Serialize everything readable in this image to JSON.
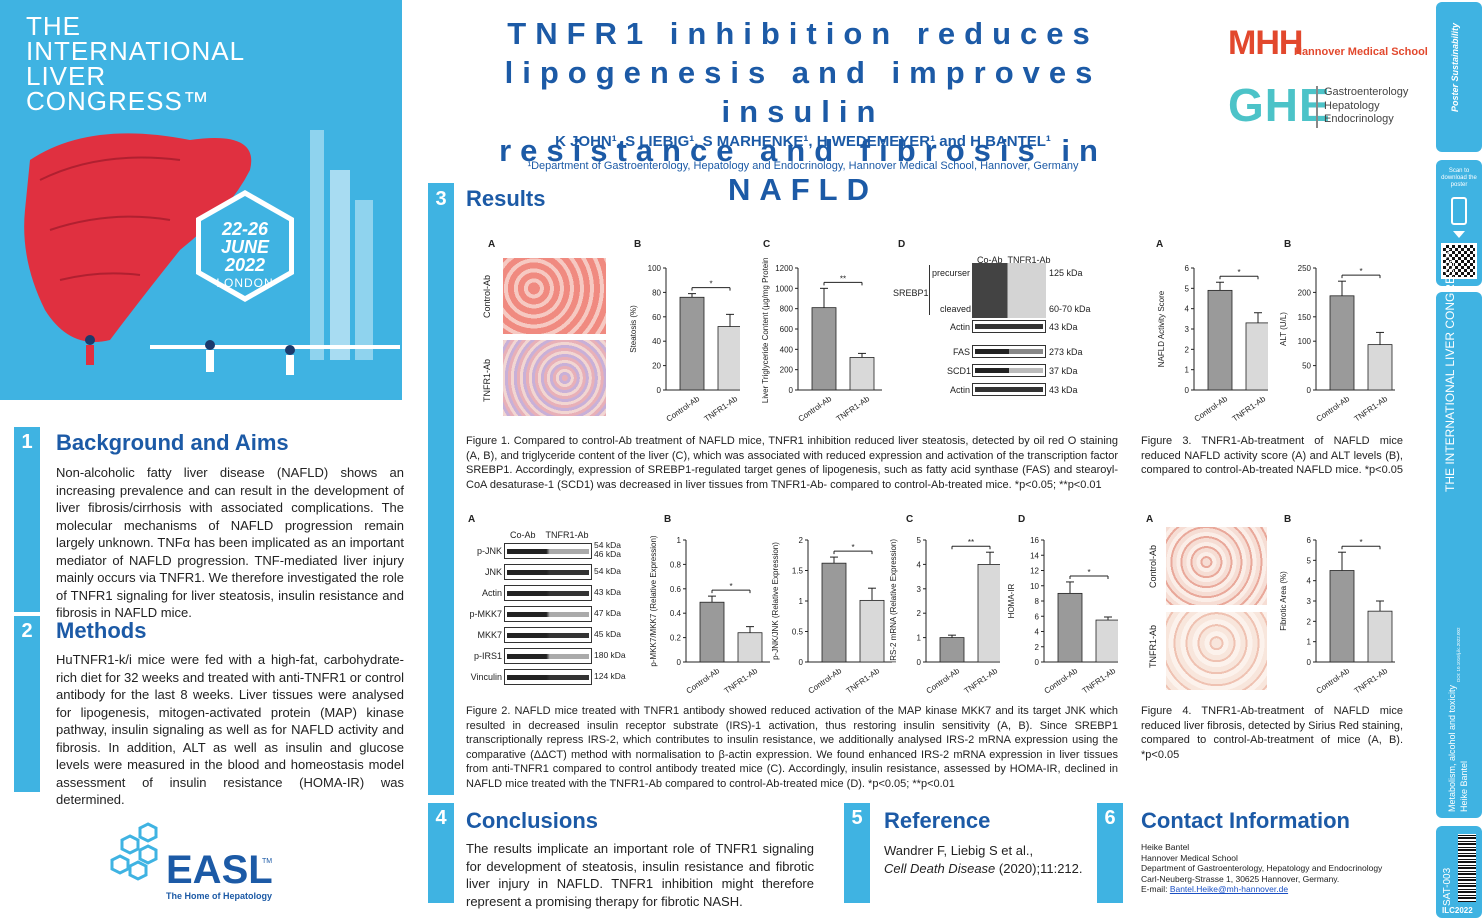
{
  "congress": {
    "line1": "THE",
    "line2": "INTERNATIONAL",
    "line3": "LIVER",
    "line4": "CONGRESS™",
    "dates1": "22-26",
    "dates2": "JUNE",
    "dates3": "2022",
    "city": "LONDON"
  },
  "title": {
    "line1": "TNFR1 inhibition reduces",
    "line2": "lipogenesis and improves insulin",
    "line3": "resistance and fibrosis in NAFLD",
    "authors": "K JOHN¹, S LIEBIG¹, S MARHENKE¹, H WEDEMEYER¹ and H BANTEL¹",
    "affiliation": "¹Department of Gastroenterology, Hepatology and Endocrinology, Hannover Medical School, Hannover, Germany"
  },
  "logos": {
    "mhh": "MHH",
    "mhh_name": "Hannover Medical School",
    "ghe": "GHE",
    "ghe_l1": "Gastroenterology",
    "ghe_l2": "Hepatology",
    "ghe_l3": "Endocrinology",
    "easl": "EASL",
    "easl_tm": "TM",
    "easl_sub": "The Home of Hepatology"
  },
  "sections": {
    "s1": {
      "num": "1",
      "title": "Background and Aims",
      "body": "Non-alcoholic fatty liver disease (NAFLD) shows an increasing prevalence and can result in the development of liver fibrosis/cirrhosis with associated complications. The molecular mechanisms of NAFLD progression remain largely unknown. TNFα has been implicated as an important mediator of NAFLD progression. TNF-mediated liver injury mainly occurs via TNFR1. We therefore investigated the role of TNFR1 signaling for liver steatosis, insulin resistance and fibrosis in NAFLD mice."
    },
    "s2": {
      "num": "2",
      "title": "Methods",
      "body": "HuTNFR1-k/i mice were fed with a high-fat, carbohydrate-rich diet for 32 weeks and treated with anti-TNFR1 or control antibody for the last 8 weeks. Liver tissues were analysed for lipogenesis, mitogen-activated protein (MAP) kinase pathway, insulin signaling as well as for NAFLD activity and fibrosis. In addition, ALT as well as insulin and glucose levels were measured in the blood and homeostasis model assessment of insulin resistance (HOMA-IR) was determined."
    },
    "s3": {
      "num": "3",
      "title": "Results"
    },
    "s4": {
      "num": "4",
      "title": "Conclusions",
      "body": "The results implicate an important role of TNFR1 signaling for development of steatosis, insulin resistance and fibrotic liver injury in NAFLD. TNFR1 inhibition might therefore represent a promising therapy for fibrotic NASH."
    },
    "s5": {
      "num": "5",
      "title": "Reference",
      "l1": "Wandrer F, Liebig S et al.,",
      "l2a": "Cell Death Disease",
      "l2b": " (2020);11:212."
    },
    "s6": {
      "num": "6",
      "title": "Contact Information",
      "l1": "Heike Bantel",
      "l2": "Hannover Medical School",
      "l3": "Department of Gastroenterology, Hepatology and Endocrinology",
      "l4": "Carl-Neuberg-Strasse 1, 30625 Hannover, Germany.",
      "l5a": "E-mail: ",
      "l5b": "Bantel.Heike@mh-hannover.de"
    }
  },
  "captions": {
    "fig1": "Figure 1. Compared to control-Ab treatment of NAFLD mice, TNFR1 inhibition reduced liver steatosis, detected by oil red O staining (A, B), and triglyceride content of the liver (C), which was associated with reduced expression and activation of the transcription factor SREBP1. Accordingly, expression of SREBP1-regulated target genes of lipogenesis, such as fatty acid synthase (FAS) and stearoyl-CoA desaturase-1 (SCD1) was decreased in liver tissues from TNFR1-Ab- compared to control-Ab-treated mice. *p<0.05; **p<0.01",
    "fig2": "Figure 2. NAFLD mice treated with TNFR1 antibody showed reduced activation of the MAP kinase MKK7 and its target JNK which resulted in decreased insulin receptor substrate (IRS)-1 activation, thus restoring insulin sensitivity (A, B). Since SREBP1 transcriptionally repress IRS-2, which contributes to insulin resistance, we additionally analysed IRS-2 mRNA expression using the comparative (ΔΔCT) method with normalisation to β-actin expression. We found enhanced IRS-2 mRNA expression in liver tissues from anti-TNFR1 compared to control antibody treated mice (C). Accordingly, insulin resistance, assessed by HOMA-IR, declined in NAFLD mice treated with the TNFR1-Ab compared to control-Ab-treated mice (D). *p<0.05; **p<0.01",
    "fig3": "Figure 3. TNFR1-Ab-treatment of NAFLD mice reduced NAFLD activity score (A) and ALT levels (B), compared to control-Ab-treated NAFLD mice. *p<0.05",
    "fig4": "Figure 4. TNFR1-Ab-treatment of NAFLD mice reduced liver fibrosis, detected by Sirius Red staining, compared to control-Ab-treatment of mice (A, B). *p<0.05"
  },
  "labels": {
    "A": "A",
    "B": "B",
    "C": "C",
    "D": "D",
    "ctrl": "Control-Ab",
    "tnfr": "TNFR1-Ab",
    "coab": "Co-Ab",
    "star": "*",
    "star2": "**"
  },
  "blot1": {
    "srebp1": "SREBP1",
    "precursor": "precurser",
    "cleaved": "cleaved",
    "actin": "Actin",
    "fas": "FAS",
    "scd1": "SCD1",
    "k125": "125 kDa",
    "k6070": "60-70 kDa",
    "k43": "43 kDa",
    "k273": "273 kDa",
    "k37": "37 kDa"
  },
  "blot2": {
    "rows": [
      "p-JNK",
      "JNK",
      "Actin",
      "p-MKK7",
      "MKK7",
      "p-IRS1",
      "Vinculin"
    ],
    "kda": [
      "54 kDa\n46 kDa",
      "54 kDa",
      "43 kDa",
      "47 kDa",
      "45 kDa",
      "180 kDa",
      "124 kDa"
    ]
  },
  "chart_data": [
    {
      "type": "bar",
      "id": "f1b",
      "categories": [
        "Control-Ab",
        "TNFR1-Ab"
      ],
      "values": [
        76,
        52
      ],
      "errors": [
        3,
        10
      ],
      "ylim": [
        0,
        100
      ],
      "ticks": [
        0,
        20,
        40,
        60,
        80,
        100
      ],
      "ylabel": "Steatosis (%)",
      "sig": "*"
    },
    {
      "type": "bar",
      "id": "f1c",
      "categories": [
        "Control-Ab",
        "TNFR1-Ab"
      ],
      "values": [
        810,
        320
      ],
      "errors": [
        190,
        40
      ],
      "ylim": [
        0,
        1200
      ],
      "ticks": [
        0,
        200,
        400,
        600,
        800,
        1000,
        1200
      ],
      "ylabel": "Liver Triglyceride Content (µg/mg Protein)",
      "sig": "**"
    },
    {
      "type": "bar",
      "id": "f3a",
      "categories": [
        "Control-Ab",
        "TNFR1-Ab"
      ],
      "values": [
        4.9,
        3.3
      ],
      "errors": [
        0.4,
        0.5
      ],
      "ylim": [
        0,
        6
      ],
      "ticks": [
        0,
        1,
        2,
        3,
        4,
        5,
        6
      ],
      "ylabel": "NAFLD Activity Score",
      "sig": "*"
    },
    {
      "type": "bar",
      "id": "f3b",
      "categories": [
        "Control-Ab",
        "TNFR1-Ab"
      ],
      "values": [
        193,
        93
      ],
      "errors": [
        30,
        25
      ],
      "ylim": [
        0,
        250
      ],
      "ticks": [
        0,
        50,
        100,
        150,
        200,
        250
      ],
      "ylabel": "ALT (U/L)",
      "sig": "*"
    },
    {
      "type": "bar",
      "id": "f2b1",
      "categories": [
        "Control-Ab",
        "TNFR1-Ab"
      ],
      "values": [
        0.49,
        0.24
      ],
      "errors": [
        0.05,
        0.05
      ],
      "ylim": [
        0,
        1.0
      ],
      "ticks": [
        0.0,
        0.2,
        0.4,
        0.6,
        0.8,
        1.0
      ],
      "ylabel": "p-MKK7/MKK7 (Relative Expression)",
      "sig": "*"
    },
    {
      "type": "bar",
      "id": "f2b2",
      "categories": [
        "Control-Ab",
        "TNFR1-Ab"
      ],
      "values": [
        1.62,
        1.01
      ],
      "errors": [
        0.1,
        0.2
      ],
      "ylim": [
        0,
        2.0
      ],
      "ticks": [
        0.0,
        0.5,
        1.0,
        1.5,
        2.0
      ],
      "ylabel": "p-JNK/JNK (Relative Expression)",
      "sig": "*"
    },
    {
      "type": "bar",
      "id": "f2c",
      "categories": [
        "Control-Ab",
        "TNFR1-Ab"
      ],
      "values": [
        1.0,
        4.0
      ],
      "errors": [
        0.1,
        0.5
      ],
      "ylim": [
        0,
        5
      ],
      "ticks": [
        0,
        1,
        2,
        3,
        4,
        5
      ],
      "ylabel": "IRS-2 mRNA (Relative Expression)",
      "sig": "**"
    },
    {
      "type": "bar",
      "id": "f2d",
      "categories": [
        "Control-Ab",
        "TNFR1-Ab"
      ],
      "values": [
        9,
        5.5
      ],
      "errors": [
        1.5,
        0.4
      ],
      "ylim": [
        0,
        16
      ],
      "ticks": [
        0,
        2,
        4,
        6,
        8,
        10,
        12,
        14,
        16
      ],
      "ylabel": "HOMA-IR",
      "sig": "*"
    },
    {
      "type": "bar",
      "id": "f4b",
      "categories": [
        "Control-Ab",
        "TNFR1-Ab"
      ],
      "values": [
        4.5,
        2.5
      ],
      "errors": [
        0.9,
        0.5
      ],
      "ylim": [
        0,
        6
      ],
      "ticks": [
        0,
        1,
        2,
        3,
        4,
        5,
        6
      ],
      "ylabel": "Fibrotic Area (%)",
      "sig": "*"
    }
  ],
  "sidebar": {
    "pv": "Poster Sustainability",
    "scan": "Scan to download the poster",
    "ilc": "THE INTERNATIONAL LIVER CONGRESS™",
    "doi": "DOI: 10.1016/j.ilc.2022.002",
    "topic": "Metabolism, alcohol and toxicity",
    "author": "Heike Bantel",
    "code": "SAT-003",
    "year": "ILC2022"
  },
  "colors": {
    "accent": "#3fb3e2",
    "heading": "#1c5aa6",
    "ctrl_bar": "#9a9a9a",
    "tnfr_bar": "#d9d9d9",
    "liver": "#e03040",
    "mhh_red": "#e2482d",
    "ghe": "#4cc3c8"
  }
}
